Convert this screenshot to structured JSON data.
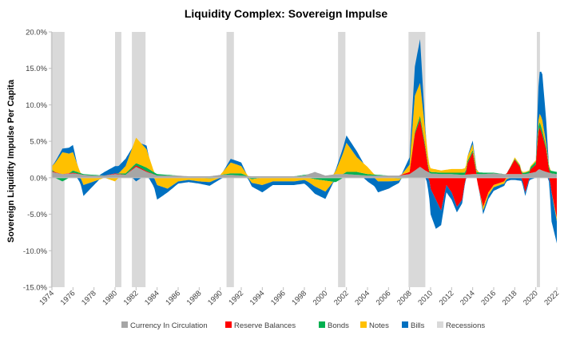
{
  "chart_data": {
    "type": "area",
    "title": "Liquidity Complex: Sovereign Impulse",
    "xlabel": "",
    "ylabel": "Sovereign Liquidity Impulse Per Capita",
    "xlim": [
      1974,
      2022
    ],
    "ylim": [
      -15,
      20
    ],
    "y_ticks": [
      {
        "value": 20,
        "label": "20.0%"
      },
      {
        "value": 15,
        "label": "15.0%"
      },
      {
        "value": 10,
        "label": "10.0%"
      },
      {
        "value": 5,
        "label": "5.0%"
      },
      {
        "value": 0,
        "label": "0.0%"
      },
      {
        "value": -5,
        "label": "-5.0%"
      },
      {
        "value": -10,
        "label": "-10.0%"
      },
      {
        "value": -15,
        "label": "-15.0%"
      }
    ],
    "x_ticks": [
      {
        "value": 1974,
        "label": "1974"
      },
      {
        "value": 1976,
        "label": "1976"
      },
      {
        "value": 1978,
        "label": "1978"
      },
      {
        "value": 1980,
        "label": "1980"
      },
      {
        "value": 1982,
        "label": "1982"
      },
      {
        "value": 1984,
        "label": "1984"
      },
      {
        "value": 1986,
        "label": "1986"
      },
      {
        "value": 1988,
        "label": "1988"
      },
      {
        "value": 1990,
        "label": "1990"
      },
      {
        "value": 1992,
        "label": "1992"
      },
      {
        "value": 1994,
        "label": "1994"
      },
      {
        "value": 1996,
        "label": "1996"
      },
      {
        "value": 1998,
        "label": "1998"
      },
      {
        "value": 2000,
        "label": "2000"
      },
      {
        "value": 2002,
        "label": "2002"
      },
      {
        "value": 2004,
        "label": "2004"
      },
      {
        "value": 2006,
        "label": "2006"
      },
      {
        "value": 2008,
        "label": "2008"
      },
      {
        "value": 2010,
        "label": "2010"
      },
      {
        "value": 2012,
        "label": "2012"
      },
      {
        "value": 2014,
        "label": "2014"
      },
      {
        "value": 2016,
        "label": "2016"
      },
      {
        "value": 2018,
        "label": "2018"
      },
      {
        "value": 2020,
        "label": "2020"
      },
      {
        "value": 2022,
        "label": "2022"
      }
    ],
    "recessions": [
      [
        1973.9,
        1975.2
      ],
      [
        1980.0,
        1980.6
      ],
      [
        1981.6,
        1982.9
      ],
      [
        1990.6,
        1991.3
      ],
      [
        2001.2,
        2001.9
      ],
      [
        2007.9,
        2009.5
      ],
      [
        2020.1,
        2020.4
      ]
    ],
    "series": [
      {
        "name": "Currency In Circulation",
        "color": "#A6A6A6",
        "x": [
          1974,
          1975,
          1976,
          1977,
          1978,
          1979,
          1980,
          1981,
          1982,
          1983,
          1984,
          1985,
          1986,
          1987,
          1988,
          1989,
          1990,
          1991,
          1992,
          1993,
          1994,
          1995,
          1996,
          1997,
          1998,
          1999,
          2000,
          2001,
          2002,
          2003,
          2004,
          2005,
          2006,
          2007,
          2008,
          2008.5,
          2009,
          2009.5,
          2010,
          2011,
          2012,
          2013,
          2014,
          2015,
          2016,
          2017,
          2018,
          2019,
          2020,
          2020.3,
          2020.6,
          2021,
          2021.5,
          2022
        ],
        "values": [
          0.8,
          0.5,
          0.6,
          0.4,
          0.3,
          0.3,
          0.5,
          0.4,
          1.5,
          0.8,
          0.3,
          0.3,
          0.3,
          0.2,
          0.2,
          0.2,
          0.4,
          0.4,
          0.3,
          0.2,
          0.2,
          0.2,
          0.2,
          0.2,
          0.3,
          0.8,
          0.3,
          0.5,
          0.5,
          0.4,
          0.3,
          0.3,
          0.3,
          0.3,
          0.5,
          1.0,
          1.5,
          1.0,
          0.6,
          0.5,
          0.5,
          0.4,
          0.5,
          0.5,
          0.6,
          0.5,
          0.5,
          0.5,
          0.8,
          1.2,
          1.0,
          0.8,
          0.6,
          0.5
        ]
      },
      {
        "name": "Reserve Balances",
        "color": "#FF0000",
        "x": [
          1974,
          1975,
          1976,
          1977,
          1978,
          1979,
          1980,
          1981,
          1982,
          1983,
          1984,
          1985,
          1986,
          1987,
          1988,
          1989,
          1990,
          1991,
          1992,
          1993,
          1994,
          1995,
          1996,
          1997,
          1998,
          1999,
          2000,
          2001,
          2002,
          2003,
          2004,
          2005,
          2006,
          2007,
          2008,
          2008.5,
          2009,
          2009.5,
          2010,
          2010.5,
          2011,
          2011.5,
          2012,
          2012.5,
          2013,
          2013.5,
          2014,
          2014.5,
          2015,
          2015.5,
          2016,
          2017,
          2018,
          2018.5,
          2019,
          2019.5,
          2020,
          2020.3,
          2020.6,
          2021,
          2021.5,
          2022
        ],
        "values": [
          0.1,
          0,
          0.1,
          0,
          0,
          0,
          0.1,
          0,
          0.2,
          0.1,
          0,
          0,
          0,
          0,
          0,
          0,
          0,
          0,
          0,
          0,
          0,
          0,
          0,
          0,
          0,
          0,
          0,
          0,
          0,
          0,
          0,
          0,
          0,
          0,
          0.3,
          5.0,
          6.5,
          3.0,
          -1.5,
          -3.0,
          -4.5,
          -1.0,
          -2.0,
          -4.0,
          -3.0,
          1.5,
          3.0,
          -1.0,
          -4.0,
          -2.0,
          -1.0,
          -0.5,
          2.0,
          1.0,
          -2.0,
          0.5,
          1.0,
          6.0,
          5.0,
          3.0,
          -2.0,
          -5.5
        ]
      },
      {
        "name": "Bonds",
        "color": "#00B050",
        "x": [
          1974,
          1975,
          1976,
          1977,
          1978,
          1979,
          1980,
          1981,
          1982,
          1983,
          1984,
          1985,
          1986,
          1987,
          1988,
          1989,
          1990,
          1991,
          1992,
          1993,
          1994,
          1995,
          1996,
          1997,
          1998,
          1999,
          2000,
          2001,
          2002,
          2003,
          2004,
          2005,
          2006,
          2007,
          2008,
          2009,
          2010,
          2011,
          2012,
          2013,
          2014,
          2015,
          2016,
          2017,
          2018,
          2019,
          2020,
          2020.3,
          2020.6,
          2021,
          2022
        ],
        "values": [
          0.2,
          -0.5,
          0.3,
          0.1,
          0.1,
          0,
          0,
          0.2,
          0.3,
          0.5,
          0.2,
          0.1,
          0,
          0,
          0,
          -0.1,
          0,
          0.2,
          0.3,
          -0.2,
          0,
          0,
          0,
          0,
          0.1,
          -0.2,
          -0.4,
          -0.6,
          0.3,
          0.4,
          0.2,
          0.1,
          0,
          -0.1,
          0,
          0.5,
          0.2,
          0.2,
          0.2,
          0.3,
          0.3,
          0.2,
          0.1,
          0,
          0.1,
          0.2,
          0.4,
          0.8,
          0.6,
          0.4,
          0.3
        ]
      },
      {
        "name": "Notes",
        "color": "#FFC000",
        "x": [
          1974,
          1975,
          1976,
          1977,
          1978,
          1979,
          1980,
          1981,
          1982,
          1983,
          1984,
          1985,
          1986,
          1987,
          1988,
          1989,
          1990,
          1991,
          1992,
          1993,
          1994,
          1995,
          1996,
          1997,
          1998,
          1999,
          2000,
          2001,
          2002,
          2003,
          2004,
          2005,
          2006,
          2007,
          2008,
          2008.5,
          2009,
          2009.5,
          2010,
          2011,
          2012,
          2013,
          2014,
          2015,
          2016,
          2017,
          2018,
          2019,
          2020,
          2020.3,
          2020.6,
          2021,
          2022
        ],
        "values": [
          0.5,
          3.0,
          2.5,
          -1.0,
          -0.5,
          0,
          -0.5,
          1.0,
          3.5,
          2.5,
          -1.0,
          -1.5,
          -0.5,
          -0.3,
          -0.5,
          -0.5,
          0,
          1.5,
          1.0,
          -0.5,
          -1.0,
          -0.5,
          -0.5,
          -0.5,
          -0.3,
          -1.0,
          -1.5,
          0.5,
          4.0,
          2.0,
          1.0,
          -0.5,
          -0.5,
          -0.3,
          1.0,
          5.0,
          4.5,
          2.0,
          0.5,
          0.3,
          0.5,
          0.5,
          0.8,
          -0.5,
          -0.3,
          -0.3,
          0.2,
          0.1,
          0.2,
          1.0,
          1.5,
          0.5,
          -0.5
        ]
      },
      {
        "name": "Bills",
        "color": "#0070C0",
        "x": [
          1974,
          1975,
          1976,
          1977,
          1978,
          1979,
          1980,
          1981,
          1982,
          1983,
          1984,
          1985,
          1986,
          1987,
          1988,
          1989,
          1990,
          1991,
          1992,
          1993,
          1994,
          1995,
          1996,
          1997,
          1998,
          1999,
          2000,
          2001,
          2002,
          2003,
          2004,
          2005,
          2006,
          2007,
          2008,
          2008.5,
          2009,
          2009.5,
          2010,
          2010.5,
          2011,
          2011.5,
          2012,
          2013,
          2014,
          2015,
          2016,
          2017,
          2018,
          2019,
          2020,
          2020.3,
          2020.6,
          2021,
          2021.5,
          2022
        ],
        "values": [
          0,
          0.5,
          1.0,
          -1.5,
          -0.5,
          0.5,
          1.0,
          1.0,
          -0.5,
          0.5,
          -2.0,
          -0.5,
          -0.3,
          -0.3,
          -0.3,
          -0.5,
          -0.2,
          0.5,
          0.5,
          -0.5,
          -1.0,
          -0.5,
          -0.5,
          -0.5,
          -0.5,
          -1.0,
          -1.0,
          0.2,
          1.0,
          0.8,
          -0.5,
          -1.5,
          -1.0,
          -0.3,
          1.0,
          4.0,
          6.0,
          0.5,
          -3.5,
          -4.0,
          -2.0,
          -1.0,
          -1.0,
          -0.5,
          0.5,
          -0.5,
          -0.5,
          -0.3,
          -0.3,
          -0.5,
          0,
          5.5,
          6.5,
          3.0,
          -4.0,
          -3.0
        ]
      }
    ],
    "legend": [
      "Currency In Circulation",
      "Reserve Balances",
      "Bonds",
      "Notes",
      "Bills",
      "Recessions"
    ],
    "legend_placement": "bottom",
    "recession_color": "#D9D9D9",
    "grid": false
  }
}
